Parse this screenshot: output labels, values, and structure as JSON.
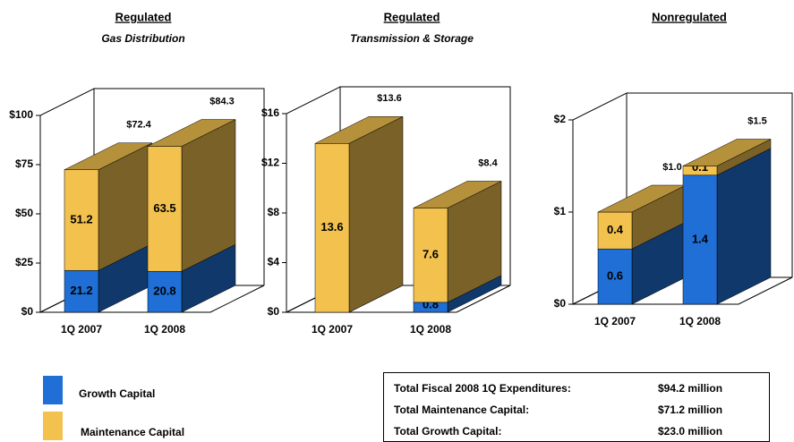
{
  "chart_data": [
    {
      "type": "bar",
      "stacked": true,
      "title": "Regulated",
      "subtitle": "Gas Distribution",
      "categories": [
        "1Q 2007",
        "1Q 2008"
      ],
      "series": [
        {
          "name": "Growth Capital",
          "color": "#1f6fd6",
          "values": [
            21.2,
            20.8
          ]
        },
        {
          "name": "Maintenance Capital",
          "color": "#f2c14e",
          "values": [
            51.2,
            63.5
          ]
        }
      ],
      "totals": {
        "values": [
          72.4,
          84.3
        ],
        "value_labels": [
          "$72.4",
          "$84.3"
        ]
      },
      "ylim": [
        0,
        100
      ],
      "yticks": [
        {
          "value": 0,
          "label": "$0"
        },
        {
          "value": 25,
          "label": "$25"
        },
        {
          "value": 50,
          "label": "$50"
        },
        {
          "value": 75,
          "label": "$75"
        },
        {
          "value": 100,
          "label": "$100"
        }
      ]
    },
    {
      "type": "bar",
      "stacked": true,
      "title": "Regulated",
      "subtitle": "Transmission & Storage",
      "categories": [
        "1Q 2007",
        "1Q 2008"
      ],
      "series": [
        {
          "name": "Growth Capital",
          "color": "#1f6fd6",
          "values": [
            0,
            0.8
          ],
          "value_labels": [
            "0.0",
            "0.8"
          ]
        },
        {
          "name": "Maintenance Capital",
          "color": "#f2c14e",
          "values": [
            13.6,
            7.6
          ]
        }
      ],
      "totals": {
        "values": [
          13.6,
          8.4
        ],
        "value_labels": [
          "$13.6",
          "$8.4"
        ]
      },
      "ylim": [
        0,
        16
      ],
      "yticks": [
        {
          "value": 0,
          "label": "$0"
        },
        {
          "value": 4,
          "label": "$4"
        },
        {
          "value": 8,
          "label": "$8"
        },
        {
          "value": 12,
          "label": "$12"
        },
        {
          "value": 16,
          "label": "$16"
        }
      ]
    },
    {
      "type": "bar",
      "stacked": true,
      "title": "Nonregulated",
      "categories": [
        "1Q 2007",
        "1Q 2008"
      ],
      "series": [
        {
          "name": "Growth Capital",
          "color": "#1f6fd6",
          "values": [
            0.6,
            1.4
          ]
        },
        {
          "name": "Maintenance Capital",
          "color": "#f2c14e",
          "values": [
            0.4,
            0.1
          ]
        }
      ],
      "totals": {
        "values": [
          1.0,
          1.5
        ],
        "value_labels": [
          "$1.0",
          "$1.5"
        ]
      },
      "ylim": [
        0,
        2
      ],
      "yticks": [
        {
          "value": 0,
          "label": "$0"
        },
        {
          "value": 1,
          "label": "$1"
        },
        {
          "value": 2,
          "label": "$2"
        }
      ]
    }
  ],
  "summary": {
    "rows": [
      [
        "Total Fiscal 2008 1Q Expenditures:",
        "$94.2 million"
      ],
      [
        "Total Maintenance Capital:",
        "$71.2 million"
      ],
      [
        "Total Growth Capital:",
        "$23.0 million"
      ]
    ]
  }
}
